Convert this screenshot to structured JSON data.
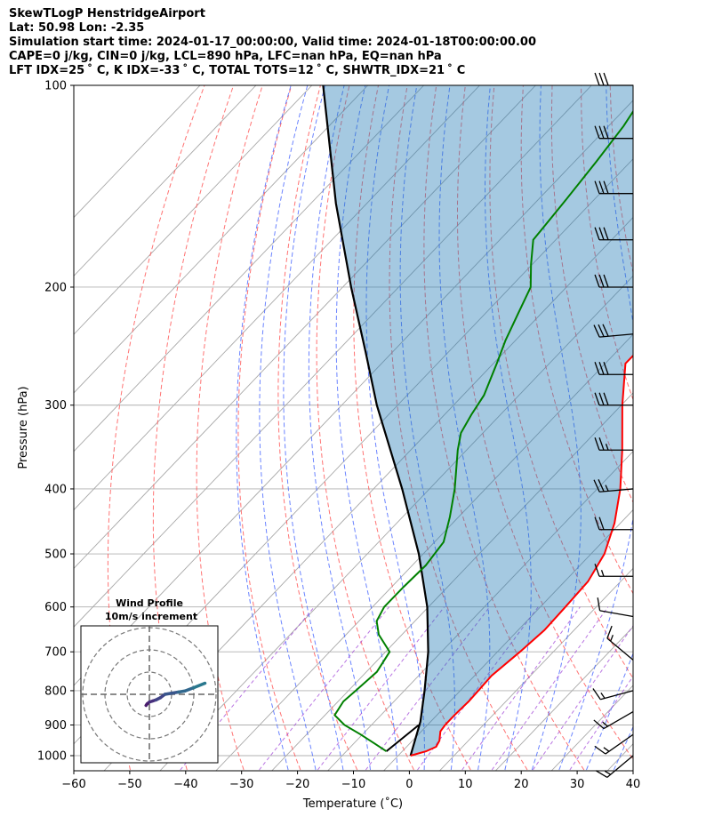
{
  "header": {
    "line1": "SkewTLogP HenstridgeAirport",
    "line2": "Lat: 50.98   Lon: -2.35",
    "line3": "Simulation start time: 2024-01-17_00:00:00, Valid time: 2024-01-18T00:00:00.00",
    "line4": "CAPE=0 j/kg, CIN=0 j/kg, LCL=890 hPa, LFC=nan hPa, EQ=nan hPa",
    "line5": "LFT IDX=25 ˚ C, K IDX=-33 ˚ C, TOTAL TOTS=12 ˚ C, SHWTR_IDX=21 ˚ C"
  },
  "chart_data": {
    "type": "skewt",
    "xlabel": "Temperature (˚C)",
    "ylabel": "Pressure (hPa)",
    "xlim": [
      -60,
      40
    ],
    "ylim": [
      1050,
      100
    ],
    "x_ticks": [
      -60,
      -50,
      -40,
      -30,
      -20,
      -10,
      0,
      10,
      20,
      30,
      40
    ],
    "x_tick_labels": [
      "−60",
      "−50",
      "−40",
      "−30",
      "−20",
      "−10",
      "0",
      "10",
      "20",
      "30",
      "40"
    ],
    "y_ticks": [
      100,
      200,
      300,
      400,
      500,
      600,
      700,
      800,
      900,
      1000
    ],
    "y_tick_labels": [
      "100",
      "200",
      "300",
      "400",
      "500",
      "600",
      "700",
      "800",
      "900",
      "1000"
    ],
    "temperature": {
      "color": "#ff0000",
      "points": [
        [
          1000,
          -2.5
        ],
        [
          985,
          -0.5
        ],
        [
          970,
          0.5
        ],
        [
          950,
          0
        ],
        [
          920,
          -1.5
        ],
        [
          900,
          -1.8
        ],
        [
          870,
          -1.9
        ],
        [
          830,
          -1.8
        ],
        [
          800,
          -2
        ],
        [
          760,
          -2.3
        ],
        [
          700,
          -1.5
        ],
        [
          650,
          -1
        ],
        [
          600,
          -1.4
        ],
        [
          550,
          -1.9
        ],
        [
          500,
          -3.9
        ],
        [
          450,
          -7.6
        ],
        [
          400,
          -12.7
        ],
        [
          350,
          -19.3
        ],
        [
          300,
          -27.3
        ],
        [
          260,
          -34.2
        ],
        [
          240,
          -34.3
        ],
        [
          230,
          -34
        ],
        [
          210,
          -33.4
        ],
        [
          190,
          -34.8
        ],
        [
          170,
          -38.8
        ],
        [
          150,
          -44.8
        ],
        [
          135,
          -49.5
        ],
        [
          120,
          -54.8
        ],
        [
          110,
          -59.5
        ],
        [
          100,
          -64
        ]
      ]
    },
    "dewpoint": {
      "color": "#008000",
      "points": [
        [
          985,
          -7.6
        ],
        [
          960,
          -11
        ],
        [
          930,
          -15.2
        ],
        [
          900,
          -19.8
        ],
        [
          870,
          -23.3
        ],
        [
          830,
          -24.2
        ],
        [
          800,
          -23.9
        ],
        [
          750,
          -23.5
        ],
        [
          700,
          -24.8
        ],
        [
          660,
          -29.8
        ],
        [
          630,
          -32.6
        ],
        [
          600,
          -33.8
        ],
        [
          560,
          -33.9
        ],
        [
          520,
          -33.8
        ],
        [
          480,
          -34.8
        ],
        [
          440,
          -38.2
        ],
        [
          400,
          -42.3
        ],
        [
          350,
          -48.7
        ],
        [
          330,
          -51.2
        ],
        [
          310,
          -52.6
        ],
        [
          290,
          -53.8
        ],
        [
          260,
          -57.2
        ],
        [
          240,
          -59.8
        ],
        [
          220,
          -62.2
        ],
        [
          200,
          -64.8
        ],
        [
          185,
          -68.8
        ],
        [
          170,
          -72.8
        ],
        [
          150,
          -74
        ],
        [
          130,
          -75.5
        ],
        [
          115,
          -77
        ],
        [
          100,
          -79.5
        ]
      ]
    },
    "parcel": {
      "color": "#000000",
      "points": [
        [
          1000,
          -2.5
        ],
        [
          890,
          -6.8
        ],
        [
          800,
          -11.6
        ],
        [
          700,
          -17.9
        ],
        [
          600,
          -26.1
        ],
        [
          500,
          -37.1
        ],
        [
          400,
          -51.7
        ],
        [
          300,
          -71.2
        ],
        [
          250,
          -82.7
        ],
        [
          200,
          -96.9
        ],
        [
          150,
          -114.6
        ],
        [
          100,
          -138
        ]
      ]
    },
    "lcl": {
      "pressure_hpa": 890
    },
    "surface_dewpoint_segment": [
      [
        985,
        -7.6
      ],
      [
        900,
        -6.5
      ]
    ],
    "cape_cin_shading": {
      "color": "#1f77b4",
      "opacity": 0.4
    },
    "dry_adiabat_thetas_K": [
      220,
      230,
      240,
      250,
      260,
      270,
      280,
      290,
      300,
      310,
      320,
      330,
      340,
      350,
      360,
      370,
      380,
      390,
      400,
      410,
      420,
      430,
      440
    ],
    "moist_adiabat_thetaw_C": [
      -25,
      -20,
      -15,
      -10,
      -5,
      0,
      5,
      10,
      15,
      20,
      25,
      30,
      35
    ],
    "mixing_ratios_gkg": [
      0.1,
      0.4,
      1,
      2,
      4,
      7,
      10,
      16,
      24
    ],
    "wind_barbs": [
      {
        "p": 100,
        "speed_kt": 30,
        "dir": 270
      },
      {
        "p": 120,
        "speed_kt": 30,
        "dir": 270
      },
      {
        "p": 145,
        "speed_kt": 30,
        "dir": 270
      },
      {
        "p": 170,
        "speed_kt": 30,
        "dir": 270
      },
      {
        "p": 200,
        "speed_kt": 30,
        "dir": 270
      },
      {
        "p": 235,
        "speed_kt": 30,
        "dir": 265
      },
      {
        "p": 270,
        "speed_kt": 30,
        "dir": 270
      },
      {
        "p": 300,
        "speed_kt": 30,
        "dir": 270
      },
      {
        "p": 350,
        "speed_kt": 25,
        "dir": 270
      },
      {
        "p": 400,
        "speed_kt": 25,
        "dir": 265
      },
      {
        "p": 460,
        "speed_kt": 20,
        "dir": 270
      },
      {
        "p": 540,
        "speed_kt": 15,
        "dir": 270
      },
      {
        "p": 620,
        "speed_kt": 10,
        "dir": 280
      },
      {
        "p": 720,
        "speed_kt": 15,
        "dir": 310
      },
      {
        "p": 800,
        "speed_kt": 15,
        "dir": 255
      },
      {
        "p": 860,
        "speed_kt": 15,
        "dir": 240
      },
      {
        "p": 930,
        "speed_kt": 15,
        "dir": 235
      },
      {
        "p": 1000,
        "speed_kt": 15,
        "dir": 230
      }
    ],
    "hodograph": {
      "title": "Wind Profile",
      "subtitle": "10m/s increment",
      "ring_step_ms": 10,
      "ring_count": 3,
      "trace": [
        [
          -1.5,
          -5
        ],
        [
          -1,
          -4.3
        ],
        [
          0,
          -3.5
        ],
        [
          1.5,
          -3
        ],
        [
          3,
          -2.5
        ],
        [
          5,
          -1.5
        ],
        [
          7,
          0
        ],
        [
          10,
          0.5
        ],
        [
          13,
          1
        ],
        [
          16,
          1.5
        ],
        [
          20,
          3
        ],
        [
          25,
          5
        ]
      ]
    }
  }
}
